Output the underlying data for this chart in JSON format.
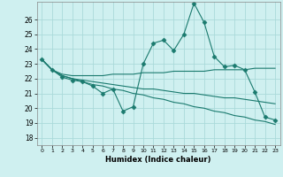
{
  "xlabel": "Humidex (Indice chaleur)",
  "bg_color": "#cff0f0",
  "grid_color": "#aadada",
  "line_color": "#1a7a6e",
  "x_ticks": [
    0,
    1,
    2,
    3,
    4,
    5,
    6,
    7,
    8,
    9,
    10,
    11,
    12,
    13,
    14,
    15,
    16,
    17,
    18,
    19,
    20,
    21,
    22,
    23
  ],
  "ylim": [
    17.5,
    27.2
  ],
  "yticks": [
    18,
    19,
    20,
    21,
    22,
    23,
    24,
    25,
    26
  ],
  "xlim": [
    -0.5,
    23.5
  ],
  "series": [
    {
      "x": [
        0,
        1,
        2,
        3,
        4,
        5,
        6,
        7,
        8,
        9,
        10,
        11,
        12,
        13,
        14,
        15,
        16,
        17,
        18,
        19,
        20,
        21,
        22,
        23
      ],
      "y": [
        23.3,
        22.6,
        22.1,
        21.9,
        21.8,
        21.5,
        21.0,
        21.3,
        19.8,
        20.1,
        23.0,
        24.4,
        24.6,
        23.9,
        25.0,
        27.1,
        25.8,
        23.5,
        22.8,
        22.9,
        22.6,
        21.1,
        19.4,
        19.2
      ],
      "marker": "D",
      "markersize": 2.5
    },
    {
      "x": [
        0,
        1,
        2,
        3,
        4,
        5,
        6,
        7,
        8,
        9,
        10,
        11,
        12,
        13,
        14,
        15,
        16,
        17,
        18,
        19,
        20,
        21,
        22,
        23
      ],
      "y": [
        23.3,
        22.6,
        22.3,
        22.2,
        22.2,
        22.2,
        22.2,
        22.3,
        22.3,
        22.3,
        22.4,
        22.4,
        22.4,
        22.5,
        22.5,
        22.5,
        22.5,
        22.6,
        22.6,
        22.6,
        22.6,
        22.7,
        22.7,
        22.7
      ],
      "marker": null,
      "markersize": 0
    },
    {
      "x": [
        0,
        1,
        2,
        3,
        4,
        5,
        6,
        7,
        8,
        9,
        10,
        11,
        12,
        13,
        14,
        15,
        16,
        17,
        18,
        19,
        20,
        21,
        22,
        23
      ],
      "y": [
        23.3,
        22.6,
        22.2,
        22.0,
        21.8,
        21.6,
        21.5,
        21.3,
        21.2,
        21.0,
        20.9,
        20.7,
        20.6,
        20.4,
        20.3,
        20.1,
        20.0,
        19.8,
        19.7,
        19.5,
        19.4,
        19.2,
        19.1,
        18.9
      ],
      "marker": null,
      "markersize": 0
    },
    {
      "x": [
        0,
        1,
        2,
        3,
        4,
        5,
        6,
        7,
        8,
        9,
        10,
        11,
        12,
        13,
        14,
        15,
        16,
        17,
        18,
        19,
        20,
        21,
        22,
        23
      ],
      "y": [
        23.3,
        22.6,
        22.2,
        22.0,
        21.9,
        21.8,
        21.7,
        21.6,
        21.5,
        21.4,
        21.3,
        21.3,
        21.2,
        21.1,
        21.0,
        21.0,
        20.9,
        20.8,
        20.7,
        20.7,
        20.6,
        20.5,
        20.4,
        20.3
      ],
      "marker": null,
      "markersize": 0
    }
  ]
}
